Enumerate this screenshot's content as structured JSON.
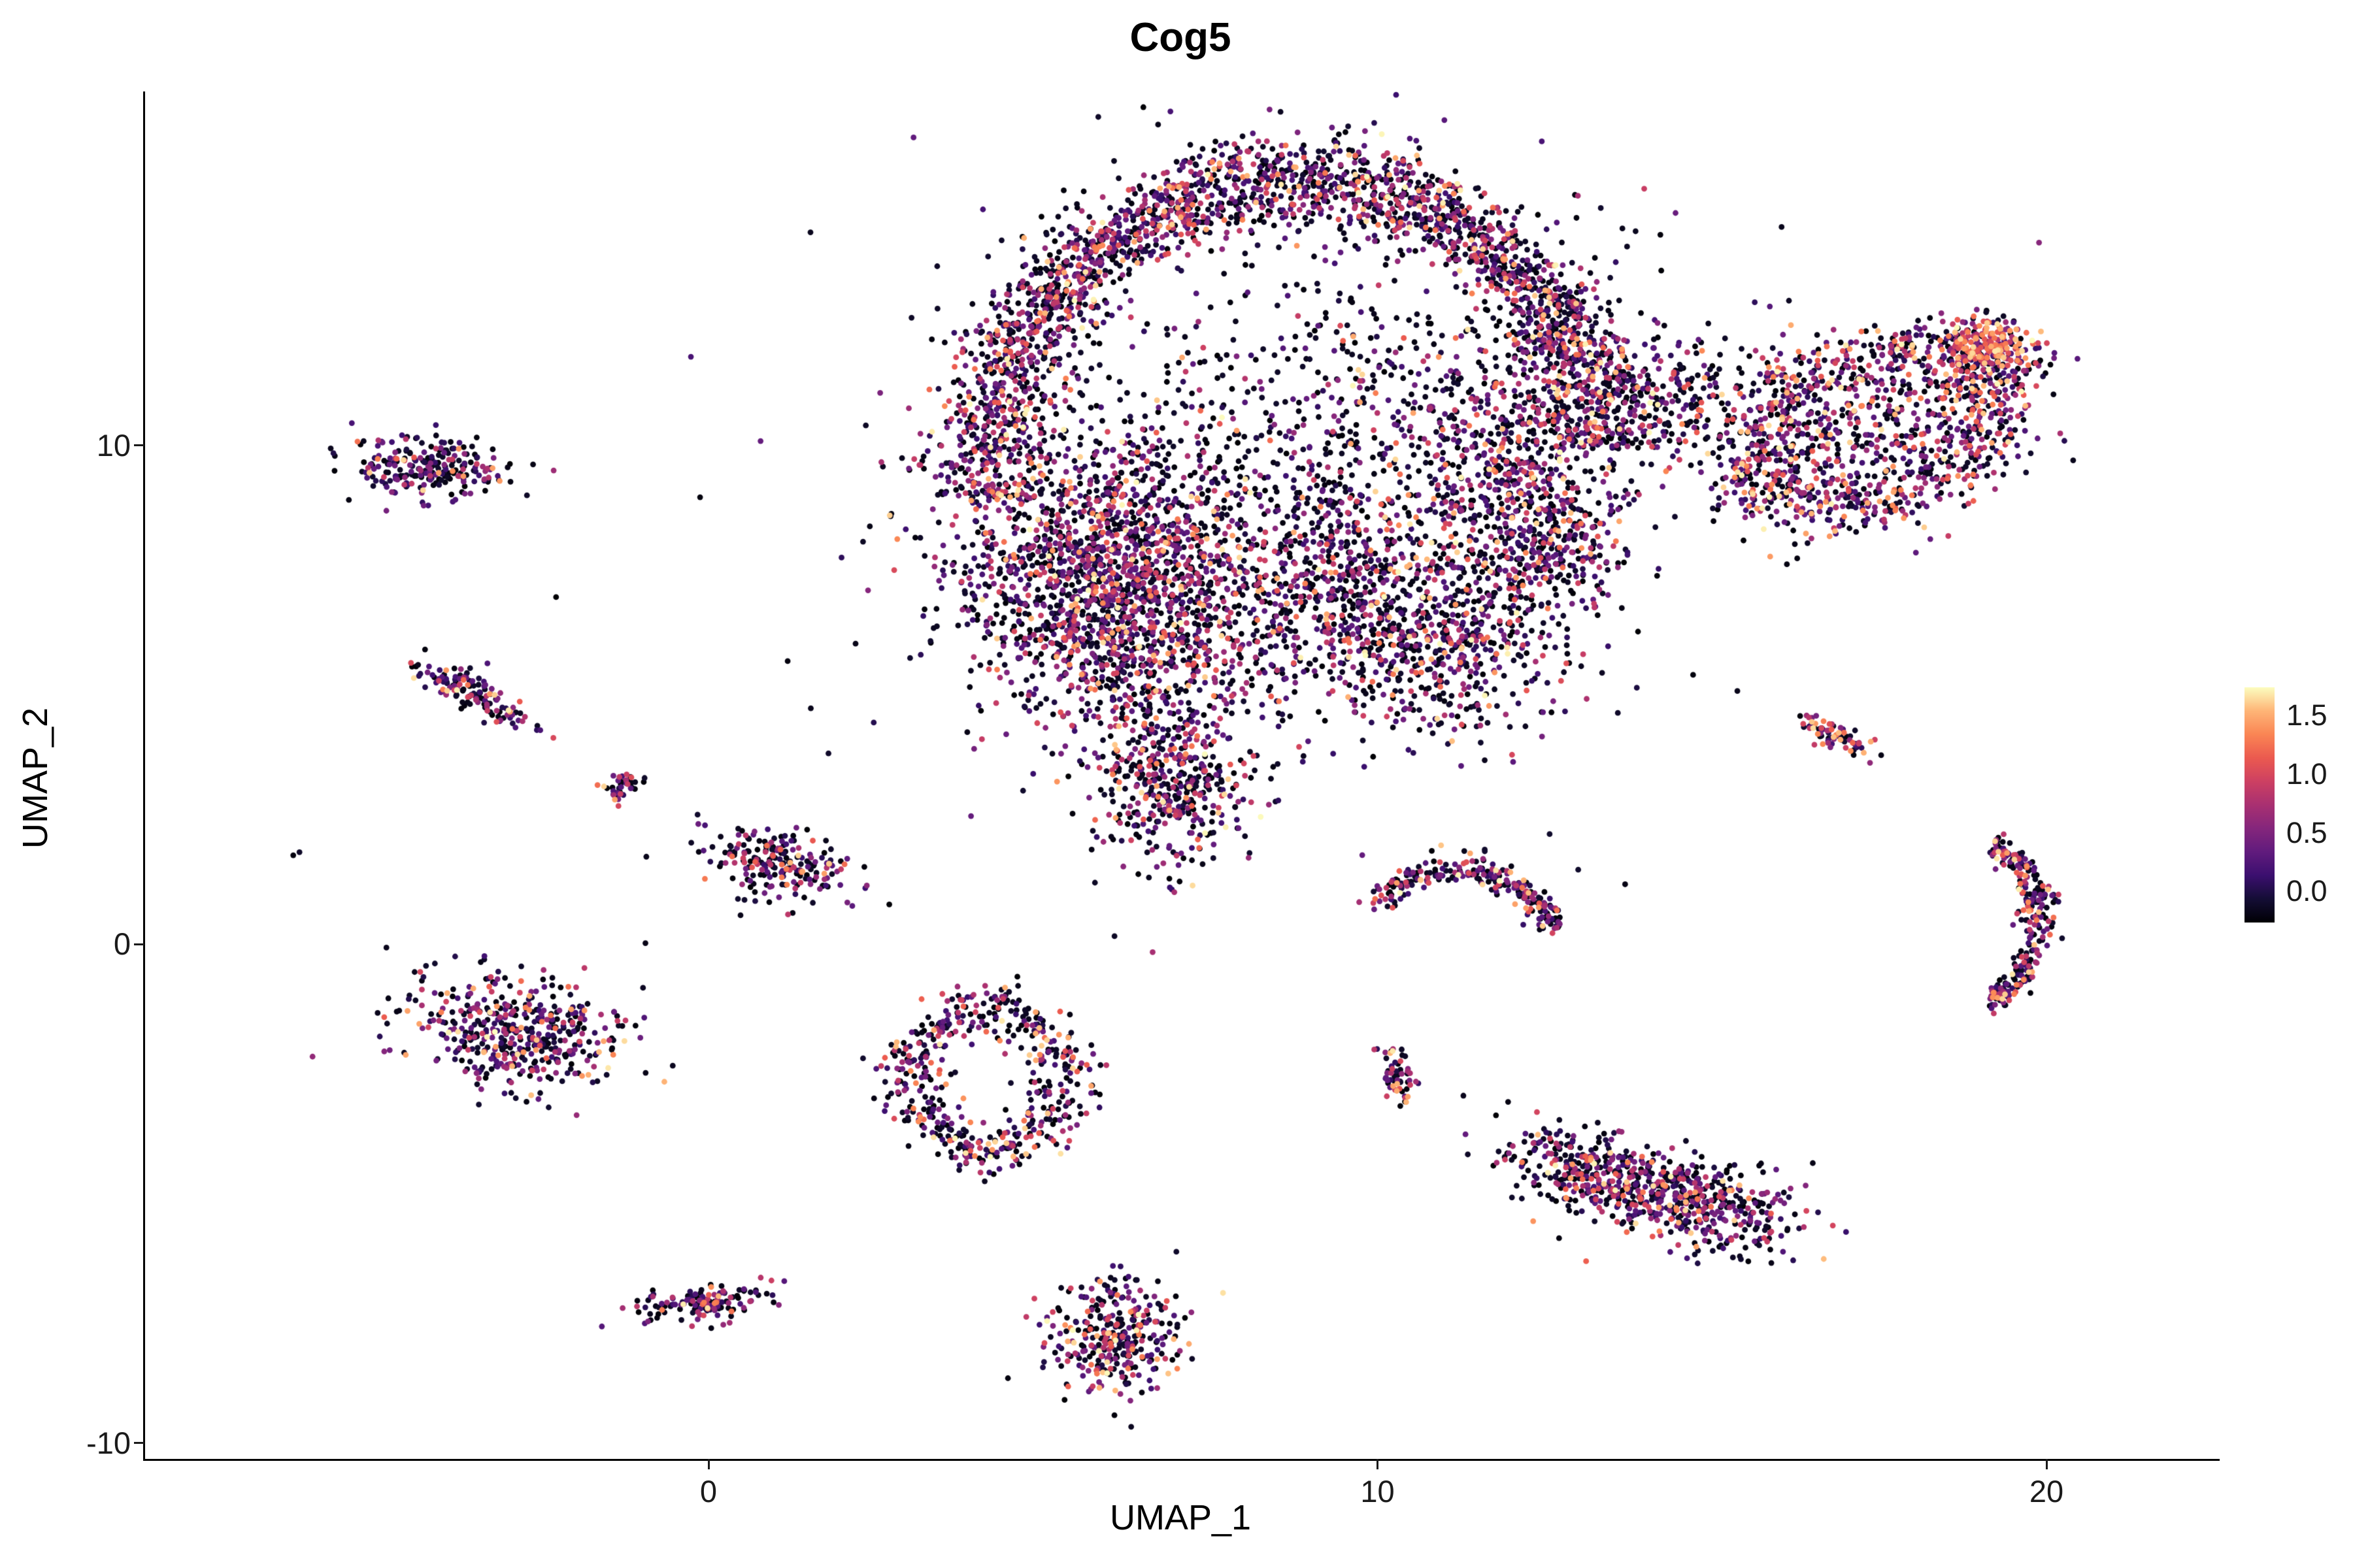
{
  "chart_data": {
    "type": "scatter",
    "title": "Cog5",
    "axes": {
      "xlabel": "UMAP_1",
      "ylabel": "UMAP_2",
      "xlim": [
        -8.4,
        22.5
      ],
      "ylim": [
        -10.6,
        17.3
      ],
      "x_ticks": [
        {
          "v": 0,
          "label": "0"
        },
        {
          "v": 10,
          "label": "10"
        },
        {
          "v": 20,
          "label": "20"
        }
      ],
      "y_ticks": [
        {
          "v": 10,
          "label": "10"
        },
        {
          "v": 0,
          "label": "0"
        },
        {
          "v": -10,
          "label": "-10"
        }
      ]
    },
    "grid": false,
    "legend_position": "right",
    "colorbar": {
      "vmax": 1.75,
      "ticks": [
        {
          "v": 1.5,
          "label": "1.5"
        },
        {
          "v": 1.0,
          "label": "1.0"
        },
        {
          "v": 0.5,
          "label": "0.5"
        },
        {
          "v": 0.0,
          "label": "0.0"
        }
      ]
    },
    "colormap": {
      "name": "magma",
      "stops": [
        {
          "t": 0.0,
          "rgb": [
            0,
            0,
            4
          ]
        },
        {
          "t": 0.1,
          "rgb": [
            20,
            13,
            53
          ]
        },
        {
          "t": 0.2,
          "rgb": [
            59,
            15,
            111
          ]
        },
        {
          "t": 0.3,
          "rgb": [
            97,
            27,
            125
          ]
        },
        {
          "t": 0.4,
          "rgb": [
            133,
            38,
            124
          ]
        },
        {
          "t": 0.5,
          "rgb": [
            169,
            48,
            113
          ]
        },
        {
          "t": 0.6,
          "rgb": [
            205,
            64,
            98
          ]
        },
        {
          "t": 0.7,
          "rgb": [
            235,
            90,
            79
          ]
        },
        {
          "t": 0.8,
          "rgb": [
            250,
            133,
            84
          ]
        },
        {
          "t": 0.9,
          "rgb": [
            254,
            181,
            119
          ]
        },
        {
          "t": 1.0,
          "rgb": [
            252,
            253,
            191
          ]
        }
      ]
    },
    "point_radius_px": 4.4,
    "clusters": [
      {
        "id": "crescent-rim",
        "type": "arc",
        "cx": 8.8,
        "cy": 9.4,
        "rx": 4.6,
        "ry": 5.9,
        "a0": 5,
        "a1": 185,
        "th": 0.5,
        "n": 2600,
        "mix": [
          0.42,
          0.26,
          0.22,
          0.1
        ]
      },
      {
        "id": "left-mass",
        "type": "gauss",
        "cx": 6.1,
        "cy": 7.2,
        "sx": 1.15,
        "sy": 1.5,
        "rot": 0,
        "n": 2000,
        "mix": [
          0.44,
          0.26,
          0.21,
          0.09
        ]
      },
      {
        "id": "lower-lobe",
        "type": "gauss",
        "cx": 7.0,
        "cy": 3.2,
        "sx": 0.55,
        "sy": 0.8,
        "rot": 0,
        "n": 420,
        "mix": [
          0.45,
          0.25,
          0.2,
          0.1
        ]
      },
      {
        "id": "interior-sparse",
        "type": "gauss",
        "cx": 9.9,
        "cy": 10.7,
        "sx": 1.5,
        "sy": 1.6,
        "rot": 0,
        "n": 380,
        "mix": [
          0.55,
          0.22,
          0.16,
          0.07
        ]
      },
      {
        "id": "mid-arm-left",
        "type": "gauss",
        "cx": 9.6,
        "cy": 6.9,
        "sx": 1.0,
        "sy": 1.1,
        "rot": 0,
        "n": 620,
        "mix": [
          0.46,
          0.25,
          0.2,
          0.09
        ]
      },
      {
        "id": "mid-arm-right",
        "type": "gauss",
        "cx": 11.2,
        "cy": 6.0,
        "sx": 0.8,
        "sy": 0.9,
        "rot": 0,
        "n": 430,
        "mix": [
          0.46,
          0.25,
          0.2,
          0.09
        ]
      },
      {
        "id": "mid-patch",
        "type": "gauss",
        "cx": 12.6,
        "cy": 7.9,
        "sx": 0.55,
        "sy": 0.65,
        "rot": 0,
        "n": 260,
        "mix": [
          0.48,
          0.25,
          0.19,
          0.08
        ]
      },
      {
        "id": "inner-dense",
        "type": "gauss",
        "cx": 12.0,
        "cy": 9.7,
        "sx": 0.85,
        "sy": 1.1,
        "rot": 0,
        "n": 520,
        "mix": [
          0.42,
          0.26,
          0.22,
          0.1
        ]
      },
      {
        "id": "edge-scatter",
        "type": "gauss",
        "cx": 8.8,
        "cy": 9.8,
        "sx": 3.2,
        "sy": 3.4,
        "rot": 0,
        "n": 480,
        "mix": [
          0.7,
          0.18,
          0.09,
          0.03
        ]
      },
      {
        "id": "bridge",
        "type": "gauss",
        "cx": 14.7,
        "cy": 10.9,
        "sx": 1.05,
        "sy": 0.75,
        "rot": 0,
        "n": 300,
        "mix": [
          0.5,
          0.24,
          0.18,
          0.08
        ]
      },
      {
        "id": "leaf-rim",
        "type": "ring",
        "cx": 17.5,
        "cy": 10.3,
        "rx": 2.05,
        "ry": 1.3,
        "rot": 35,
        "th": 0.42,
        "n": 850,
        "mix": [
          0.32,
          0.22,
          0.26,
          0.2
        ]
      },
      {
        "id": "leaf-fill",
        "type": "gauss",
        "cx": 17.5,
        "cy": 10.3,
        "sx": 1.25,
        "sy": 0.8,
        "rot": 35,
        "n": 400,
        "mix": [
          0.4,
          0.24,
          0.22,
          0.14
        ]
      },
      {
        "id": "leaf-hotspot",
        "type": "gauss",
        "cx": 19.15,
        "cy": 12.0,
        "sx": 0.3,
        "sy": 0.28,
        "rot": 0,
        "n": 190,
        "mix": [
          0.1,
          0.14,
          0.3,
          0.46
        ]
      },
      {
        "id": "sat-topleft",
        "type": "gauss",
        "cx": -4.2,
        "cy": 9.55,
        "sx": 0.55,
        "sy": 0.3,
        "rot": -8,
        "n": 240,
        "mix": [
          0.45,
          0.25,
          0.2,
          0.1
        ]
      },
      {
        "id": "sat-upperleft",
        "type": "gauss",
        "cx": -3.5,
        "cy": 5.0,
        "sx": 0.45,
        "sy": 0.17,
        "rot": -40,
        "n": 140,
        "mix": [
          0.45,
          0.25,
          0.2,
          0.1
        ]
      },
      {
        "id": "sat-tiny-left",
        "type": "gauss",
        "cx": -1.3,
        "cy": 3.2,
        "sx": 0.14,
        "sy": 0.18,
        "rot": 0,
        "n": 40,
        "mix": [
          0.4,
          0.25,
          0.22,
          0.13
        ]
      },
      {
        "id": "sat-lone-dot",
        "type": "gauss",
        "cx": -6.2,
        "cy": 1.85,
        "sx": 0.04,
        "sy": 0.04,
        "rot": 0,
        "n": 2,
        "mix": [
          1,
          0,
          0,
          0
        ]
      },
      {
        "id": "sat-left-small",
        "type": "gauss",
        "cx": 1.0,
        "cy": 1.6,
        "sx": 0.5,
        "sy": 0.33,
        "rot": -25,
        "n": 220,
        "mix": [
          0.5,
          0.25,
          0.17,
          0.08
        ]
      },
      {
        "id": "sat-left-mid",
        "type": "gauss",
        "cx": -2.9,
        "cy": -1.75,
        "sx": 0.8,
        "sy": 0.55,
        "rot": -12,
        "n": 480,
        "mix": [
          0.42,
          0.26,
          0.21,
          0.11
        ]
      },
      {
        "id": "ring-cluster",
        "type": "ring",
        "cx": 4.2,
        "cy": -2.7,
        "rx": 1.1,
        "ry": 1.45,
        "rot": 0,
        "th": 0.3,
        "n": 520,
        "mix": [
          0.42,
          0.25,
          0.21,
          0.12
        ]
      },
      {
        "id": "sat-bottom-left",
        "type": "gauss",
        "cx": -0.05,
        "cy": -7.2,
        "sx": 0.5,
        "sy": 0.18,
        "rot": 12,
        "n": 140,
        "mix": [
          0.45,
          0.27,
          0.19,
          0.09
        ]
      },
      {
        "id": "sat-bottom-mid",
        "type": "gauss",
        "cx": 6.1,
        "cy": -7.9,
        "sx": 0.5,
        "sy": 0.55,
        "rot": 0,
        "n": 340,
        "mix": [
          0.4,
          0.24,
          0.22,
          0.14
        ]
      },
      {
        "id": "arc-right-mid",
        "type": "arc",
        "cx": 11.2,
        "cy": -0.3,
        "rx": 1.55,
        "ry": 1.8,
        "a0": 20,
        "a1": 140,
        "th": 0.17,
        "n": 250,
        "mix": [
          0.42,
          0.26,
          0.21,
          0.11
        ]
      },
      {
        "id": "sat-small-dash",
        "type": "gauss",
        "cx": 10.3,
        "cy": -2.6,
        "sx": 0.13,
        "sy": 0.3,
        "rot": 15,
        "n": 60,
        "mix": [
          0.38,
          0.25,
          0.22,
          0.15
        ]
      },
      {
        "id": "sat-right-blob-a",
        "type": "gauss",
        "cx": 13.3,
        "cy": -4.6,
        "sx": 0.75,
        "sy": 0.42,
        "rot": -18,
        "n": 400,
        "mix": [
          0.45,
          0.26,
          0.2,
          0.09
        ]
      },
      {
        "id": "sat-right-blob-b",
        "type": "gauss",
        "cx": 15.0,
        "cy": -5.3,
        "sx": 0.7,
        "sy": 0.45,
        "rot": -15,
        "n": 340,
        "mix": [
          0.45,
          0.26,
          0.2,
          0.09
        ]
      },
      {
        "id": "sat-right-dash",
        "type": "gauss",
        "cx": 16.8,
        "cy": 4.2,
        "sx": 0.33,
        "sy": 0.11,
        "rot": -35,
        "n": 80,
        "mix": [
          0.35,
          0.22,
          0.23,
          0.2
        ]
      },
      {
        "id": "right-crescent",
        "type": "arc",
        "cx": 19.1,
        "cy": 0.45,
        "rx": 0.75,
        "ry": 1.55,
        "a0": -85,
        "a1": 85,
        "th": 0.15,
        "n": 280,
        "mix": [
          0.42,
          0.24,
          0.2,
          0.14
        ]
      }
    ]
  }
}
